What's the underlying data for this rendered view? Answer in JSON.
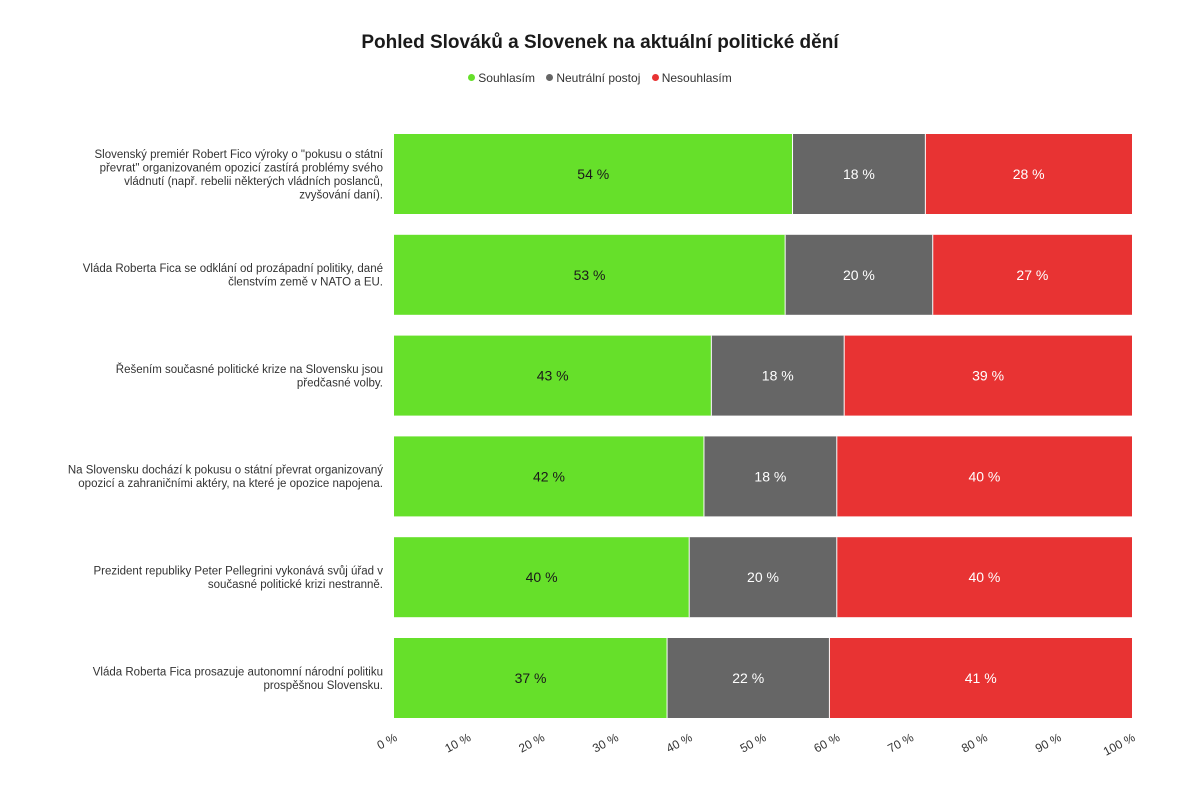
{
  "chart_data": {
    "type": "bar",
    "orientation": "horizontal",
    "stacked": true,
    "title": "Pohled Slováků a Slovenek na aktuální politické dění",
    "legend_position": "top-center",
    "grid": false,
    "xlim": [
      0,
      100
    ],
    "x_tick_labels": [
      "0 %",
      "10 %",
      "20 %",
      "30 %",
      "40 %",
      "50 %",
      "60 %",
      "70 %",
      "80 %",
      "90 %",
      "100 %"
    ],
    "categories": [
      "Slovenský premiér Robert Fico výroky o \"pokusu o státní převrat\" organizovaném opozicí zastírá problémy svého vládnutí (např. rebelii některých vládních poslanců, zvyšování daní).",
      "Vláda Roberta Fica se odklání od prozápadní politiky, dané členstvím země v NATO a EU.",
      "Řešením současné politické krize na Slovensku jsou předčasné volby.",
      "Na Slovensku dochází k pokusu o státní převrat organizovaný opozicí a zahraničními aktéry, na které je opozice napojena.",
      "Prezident republiky Peter Pellegrini vykonává svůj úřad v současné politické krizi nestranně.",
      "Vláda Roberta Fica prosazuje autonomní národní politiku prospěšnou Slovensku."
    ],
    "category_lines": [
      [
        "Slovenský premiér Robert Fico výroky o \"pokusu o státní",
        "převrat\" organizovaném opozicí zastírá problémy svého",
        "vládnutí (např. rebelii některých vládních poslanců,",
        "zvyšování daní)."
      ],
      [
        "Vláda Roberta Fica se odklání od prozápadní politiky, dané",
        "členstvím země v NATO a EU."
      ],
      [
        "Řešením současné politické krize na Slovensku jsou",
        "předčasné volby."
      ],
      [
        "Na Slovensku dochází k pokusu o státní převrat organizovaný",
        "opozicí a zahraničními aktéry, na které je opozice napojena."
      ],
      [
        "Prezident republiky Peter Pellegrini vykonává svůj úřad v",
        "současné politické krizi nestranně."
      ],
      [
        "Vláda Roberta Fica prosazuje autonomní národní politiku",
        "prospěšnou Slovensku."
      ]
    ],
    "series": [
      {
        "name": "Souhlasím",
        "color": "#66e02a",
        "label_color": "#1a1a1a",
        "values": [
          54,
          53,
          43,
          42,
          40,
          37
        ]
      },
      {
        "name": "Neutrální postoj",
        "color": "#666666",
        "label_color": "#ffffff",
        "values": [
          18,
          20,
          18,
          18,
          20,
          22
        ]
      },
      {
        "name": "Nesouhlasím",
        "color": "#e83333",
        "label_color": "#ffffff",
        "values": [
          28,
          27,
          39,
          40,
          40,
          41
        ]
      }
    ],
    "value_suffix": " %"
  }
}
